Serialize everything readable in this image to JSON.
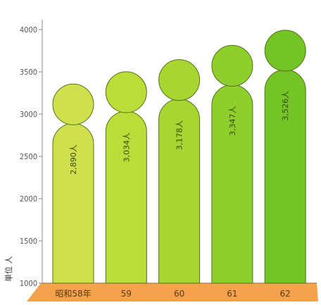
{
  "chart_data": {
    "type": "bar",
    "categories": [
      "昭和58年",
      "59",
      "60",
      "61",
      "62"
    ],
    "values": [
      2890,
      3034,
      3178,
      3347,
      3526
    ],
    "data_labels": [
      "2,890人",
      "3,034人",
      "3,178人",
      "3,347人",
      "3,526人"
    ],
    "y_ticks": [
      "1000",
      "1500",
      "2000",
      "2500",
      "3000",
      "3500",
      "4000"
    ],
    "ylim": [
      1000,
      4100
    ],
    "ylabel": "単位 人",
    "bar_colors": [
      "#cfe04c",
      "#bcdc3a",
      "#a8d630",
      "#8ecf2c",
      "#72c427"
    ],
    "floor_color": "#f4a24c",
    "grid": false
  }
}
